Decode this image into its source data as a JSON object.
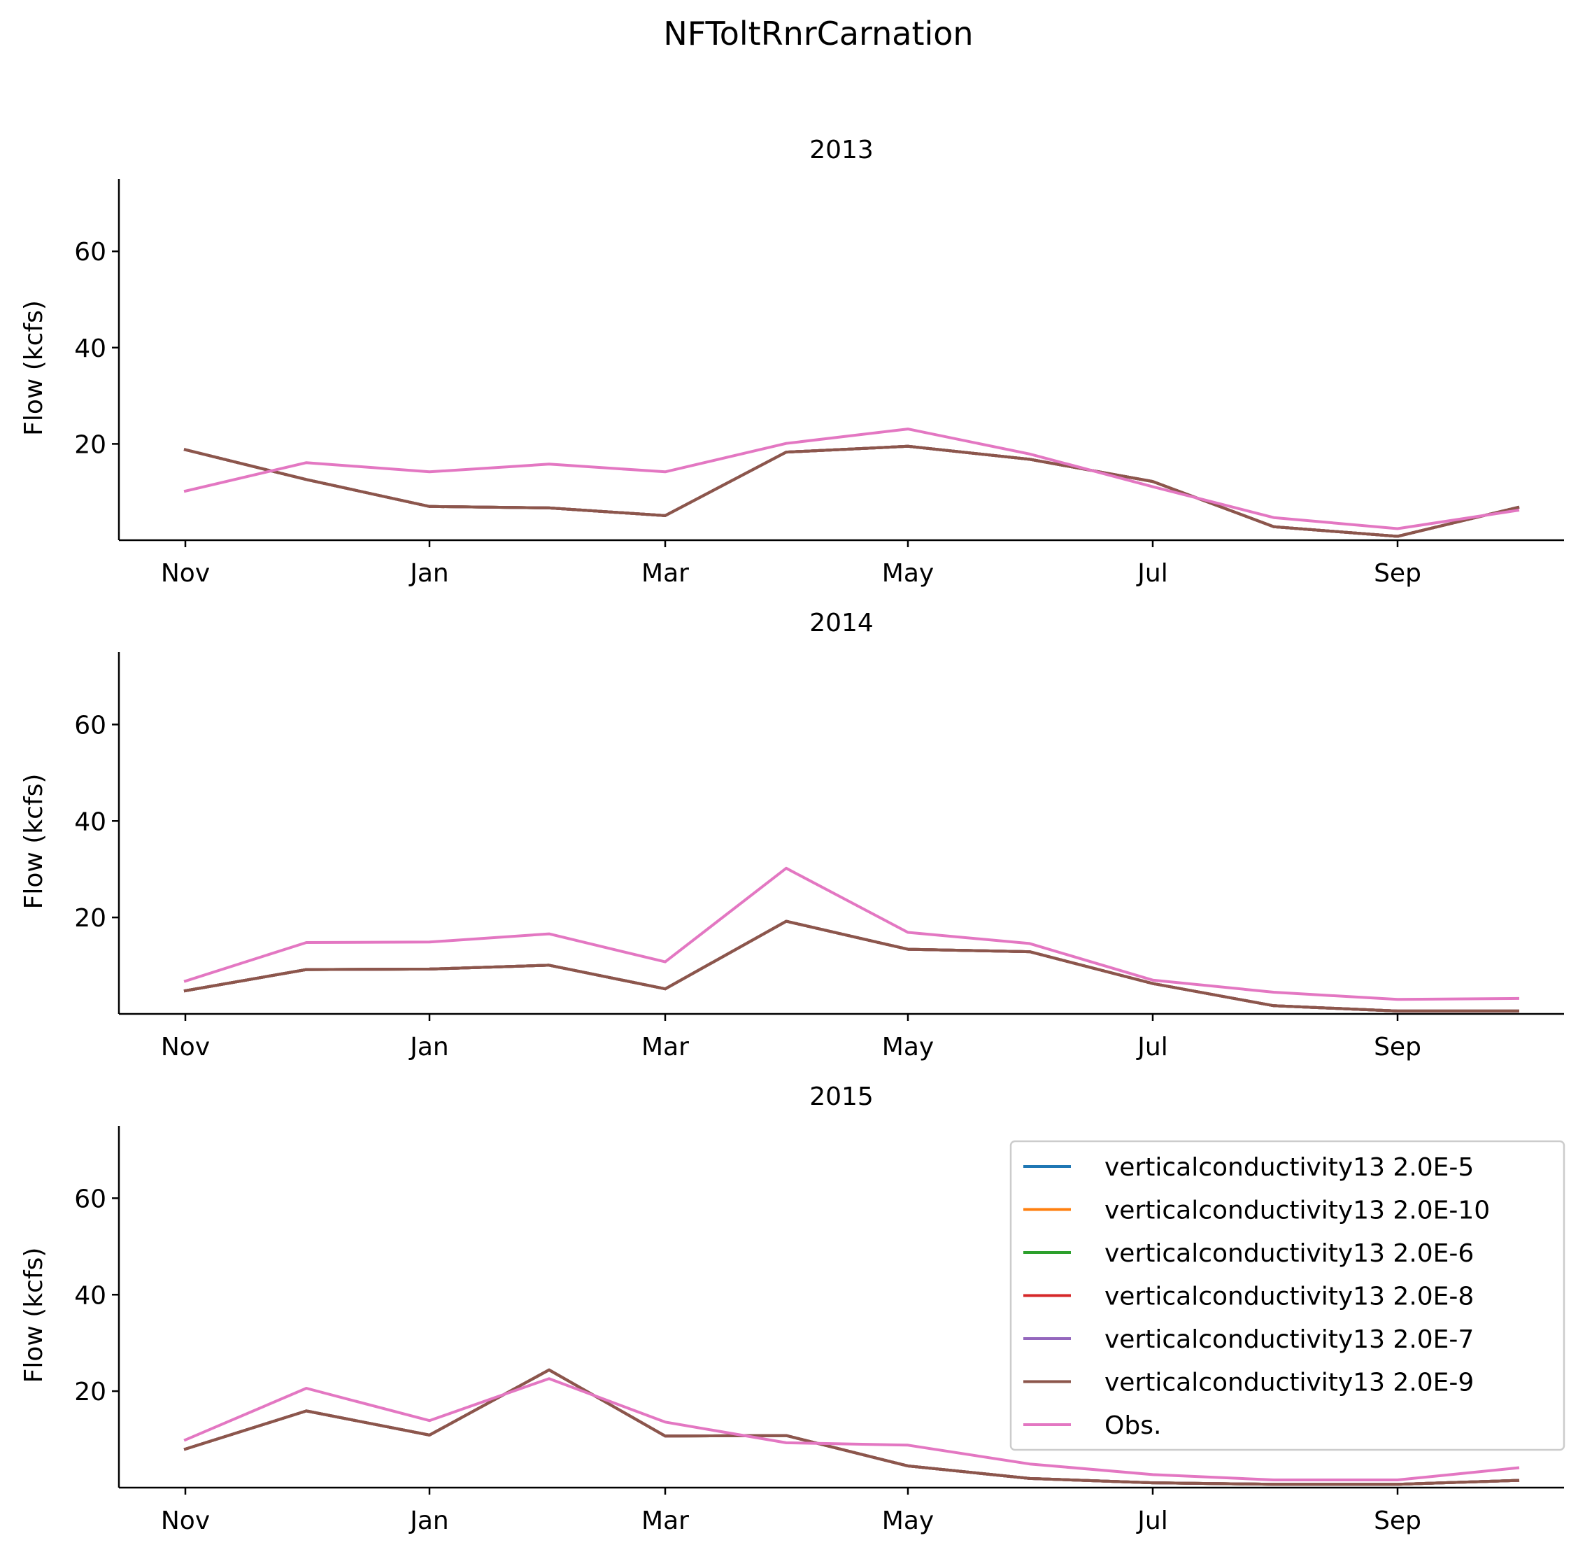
{
  "figure": {
    "suptitle": "NFToltRnrCarnation"
  },
  "chart_data": [
    {
      "type": "line",
      "title": "2013",
      "xlabel": "",
      "ylabel": "Flow (kcfs)",
      "ylim": [
        0,
        75
      ],
      "yticks": [
        20,
        40,
        60
      ],
      "xticks": [
        "Nov",
        "Jan",
        "Mar",
        "May",
        "Jul",
        "Sep"
      ],
      "x": [
        "Nov",
        "Dec",
        "Jan",
        "Feb",
        "Mar",
        "Apr",
        "May",
        "Jun",
        "Jul",
        "Aug",
        "Sep",
        "Oct"
      ],
      "series": [
        {
          "name": "verticalconductivity13 2.0E-5",
          "color": "#1f77b4",
          "values": [
            18.8,
            12.6,
            7.0,
            6.7,
            5.1,
            18.3,
            19.5,
            16.8,
            12.2,
            2.8,
            0.8,
            6.8
          ]
        },
        {
          "name": "verticalconductivity13 2.0E-10",
          "color": "#ff7f0e",
          "values": [
            18.8,
            12.6,
            7.0,
            6.7,
            5.1,
            18.3,
            19.5,
            16.8,
            12.2,
            2.8,
            0.8,
            6.8
          ]
        },
        {
          "name": "verticalconductivity13 2.0E-6",
          "color": "#2ca02c",
          "values": [
            18.8,
            12.6,
            7.0,
            6.7,
            5.1,
            18.3,
            19.5,
            16.8,
            12.2,
            2.8,
            0.8,
            6.8
          ]
        },
        {
          "name": "verticalconductivity13 2.0E-8",
          "color": "#d62728",
          "values": [
            18.8,
            12.6,
            7.0,
            6.7,
            5.1,
            18.3,
            19.5,
            16.8,
            12.2,
            2.8,
            0.8,
            6.8
          ]
        },
        {
          "name": "verticalconductivity13 2.0E-7",
          "color": "#9467bd",
          "values": [
            18.8,
            12.6,
            7.0,
            6.7,
            5.1,
            18.3,
            19.5,
            16.8,
            12.2,
            2.8,
            0.8,
            6.8
          ]
        },
        {
          "name": "verticalconductivity13 2.0E-9",
          "color": "#8c564b",
          "values": [
            18.8,
            12.6,
            7.0,
            6.7,
            5.1,
            18.3,
            19.5,
            16.8,
            12.2,
            2.8,
            0.8,
            6.8
          ]
        },
        {
          "name": "Obs.",
          "color": "#e377c2",
          "values": [
            10.2,
            16.1,
            14.2,
            15.8,
            14.2,
            20.1,
            23.1,
            17.9,
            11.1,
            4.7,
            2.4,
            6.2
          ]
        }
      ]
    },
    {
      "type": "line",
      "title": "2014",
      "xlabel": "",
      "ylabel": "Flow (kcfs)",
      "ylim": [
        0,
        75
      ],
      "yticks": [
        20,
        40,
        60
      ],
      "xticks": [
        "Nov",
        "Jan",
        "Mar",
        "May",
        "Jul",
        "Sep"
      ],
      "x": [
        "Nov",
        "Dec",
        "Jan",
        "Feb",
        "Mar",
        "Apr",
        "May",
        "Jun",
        "Jul",
        "Aug",
        "Sep",
        "Oct"
      ],
      "series": [
        {
          "name": "verticalconductivity13 2.0E-5",
          "color": "#1f77b4",
          "values": [
            4.8,
            9.2,
            9.3,
            10.1,
            5.2,
            19.2,
            13.4,
            12.9,
            6.3,
            1.7,
            0.6,
            0.6
          ]
        },
        {
          "name": "verticalconductivity13 2.0E-10",
          "color": "#ff7f0e",
          "values": [
            4.8,
            9.2,
            9.3,
            10.1,
            5.2,
            19.2,
            13.4,
            12.9,
            6.3,
            1.7,
            0.6,
            0.6
          ]
        },
        {
          "name": "verticalconductivity13 2.0E-6",
          "color": "#2ca02c",
          "values": [
            4.8,
            9.2,
            9.3,
            10.1,
            5.2,
            19.2,
            13.4,
            12.9,
            6.3,
            1.7,
            0.6,
            0.6
          ]
        },
        {
          "name": "verticalconductivity13 2.0E-8",
          "color": "#d62728",
          "values": [
            4.8,
            9.2,
            9.3,
            10.1,
            5.2,
            19.2,
            13.4,
            12.9,
            6.3,
            1.7,
            0.6,
            0.6
          ]
        },
        {
          "name": "verticalconductivity13 2.0E-7",
          "color": "#9467bd",
          "values": [
            4.8,
            9.2,
            9.3,
            10.1,
            5.2,
            19.2,
            13.4,
            12.9,
            6.3,
            1.7,
            0.6,
            0.6
          ]
        },
        {
          "name": "verticalconductivity13 2.0E-9",
          "color": "#8c564b",
          "values": [
            4.8,
            9.2,
            9.3,
            10.1,
            5.2,
            19.2,
            13.4,
            12.9,
            6.3,
            1.7,
            0.6,
            0.6
          ]
        },
        {
          "name": "Obs.",
          "color": "#e377c2",
          "values": [
            6.8,
            14.8,
            14.9,
            16.6,
            10.8,
            30.2,
            16.9,
            14.6,
            7.0,
            4.5,
            3.0,
            3.2
          ]
        }
      ]
    },
    {
      "type": "line",
      "title": "2015",
      "xlabel": "",
      "ylabel": "Flow (kcfs)",
      "ylim": [
        0,
        75
      ],
      "yticks": [
        20,
        40,
        60
      ],
      "xticks": [
        "Nov",
        "Jan",
        "Mar",
        "May",
        "Jul",
        "Sep"
      ],
      "x": [
        "Nov",
        "Dec",
        "Jan",
        "Feb",
        "Mar",
        "Apr",
        "May",
        "Jun",
        "Jul",
        "Aug",
        "Sep",
        "Oct"
      ],
      "legend": {
        "loc": "upper right"
      },
      "series": [
        {
          "name": "verticalconductivity13 2.0E-5",
          "color": "#1f77b4",
          "values": [
            8.0,
            15.9,
            10.9,
            24.4,
            10.7,
            10.8,
            4.5,
            1.9,
            1.0,
            0.7,
            0.7,
            1.5
          ]
        },
        {
          "name": "verticalconductivity13 2.0E-10",
          "color": "#ff7f0e",
          "values": [
            8.0,
            15.9,
            10.9,
            24.4,
            10.7,
            10.8,
            4.5,
            1.9,
            1.0,
            0.7,
            0.7,
            1.5
          ]
        },
        {
          "name": "verticalconductivity13 2.0E-6",
          "color": "#2ca02c",
          "values": [
            8.0,
            15.9,
            10.9,
            24.4,
            10.7,
            10.8,
            4.5,
            1.9,
            1.0,
            0.7,
            0.7,
            1.5
          ]
        },
        {
          "name": "verticalconductivity13 2.0E-8",
          "color": "#d62728",
          "values": [
            8.0,
            15.9,
            10.9,
            24.4,
            10.7,
            10.8,
            4.5,
            1.9,
            1.0,
            0.7,
            0.7,
            1.5
          ]
        },
        {
          "name": "verticalconductivity13 2.0E-7",
          "color": "#9467bd",
          "values": [
            8.0,
            15.9,
            10.9,
            24.4,
            10.7,
            10.8,
            4.5,
            1.9,
            1.0,
            0.7,
            0.7,
            1.5
          ]
        },
        {
          "name": "verticalconductivity13 2.0E-9",
          "color": "#8c564b",
          "values": [
            8.0,
            15.9,
            10.9,
            24.4,
            10.7,
            10.8,
            4.5,
            1.9,
            1.0,
            0.7,
            0.7,
            1.5
          ]
        },
        {
          "name": "Obs.",
          "color": "#e377c2",
          "values": [
            9.9,
            20.6,
            13.9,
            22.6,
            13.6,
            9.3,
            8.8,
            4.9,
            2.7,
            1.6,
            1.6,
            4.1
          ]
        }
      ]
    }
  ]
}
